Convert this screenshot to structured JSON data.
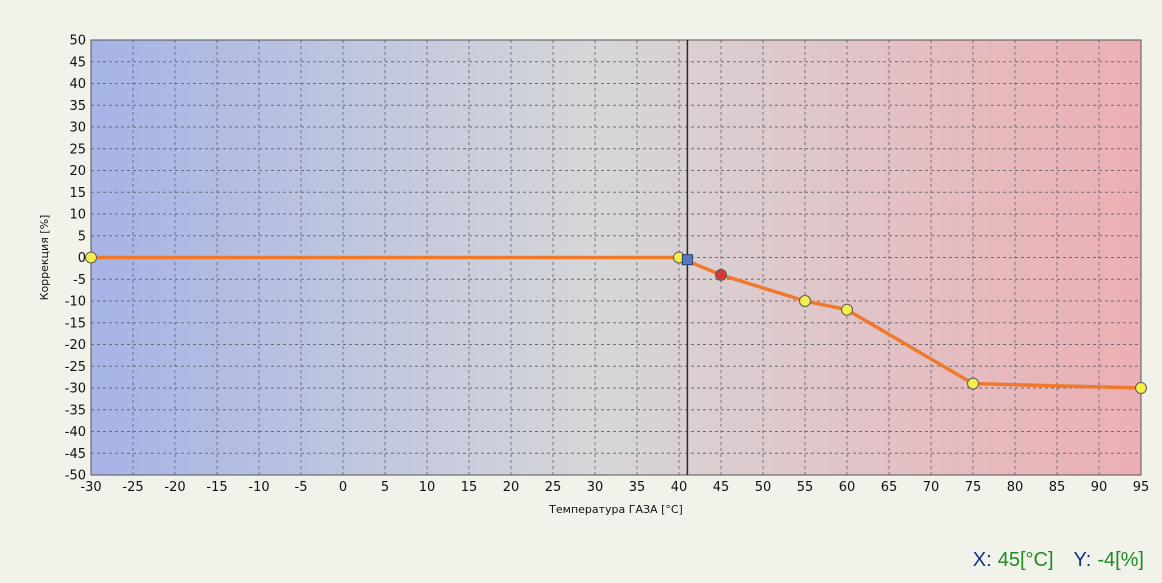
{
  "colors": {
    "left_bg": "#a6b4e6",
    "mid_bg": "#d6d6d8",
    "right_bg": "#ecafb3",
    "line": "#ef7a2c",
    "point": "#f4ee4a",
    "active_point": "#d83a32",
    "cursor_marker": "#5b79c2",
    "readout_label": "#1b2f8a",
    "readout_value": "#1f8a22"
  },
  "chart_data": {
    "type": "line",
    "title": "",
    "xlabel": "Температура ГАЗА [°C]",
    "ylabel": "Коррекция [%]",
    "xlim": [
      -30,
      95
    ],
    "ylim": [
      -50,
      50
    ],
    "x_ticks": [
      -30,
      -25,
      -20,
      -15,
      -10,
      -5,
      0,
      5,
      10,
      15,
      20,
      25,
      30,
      35,
      40,
      45,
      50,
      55,
      60,
      65,
      70,
      75,
      80,
      85,
      90,
      95
    ],
    "y_ticks": [
      50,
      45,
      40,
      35,
      30,
      25,
      20,
      15,
      10,
      5,
      0,
      -5,
      -10,
      -15,
      -20,
      -25,
      -30,
      -35,
      -40,
      -45,
      -50
    ],
    "grid": true,
    "series": [
      {
        "points": [
          {
            "x": -30,
            "y": 0
          },
          {
            "x": 40,
            "y": 0
          },
          {
            "x": 45,
            "y": -4
          },
          {
            "x": 55,
            "y": -10
          },
          {
            "x": 60,
            "y": -12
          },
          {
            "x": 75,
            "y": -29
          },
          {
            "x": 95,
            "y": -30
          }
        ]
      }
    ],
    "active_point": {
      "x": 45,
      "y": -4
    },
    "cursor_x": 41,
    "cursor_marker": {
      "x": 41,
      "y": -0.5
    }
  },
  "readout": {
    "x_label": "X:",
    "x_value": "45[°C]",
    "y_label": "Y:",
    "y_value": "-4[%]"
  }
}
